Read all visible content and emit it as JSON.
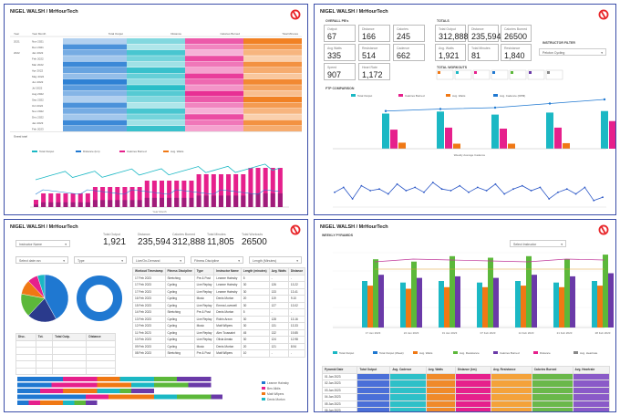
{
  "colors": {
    "accent": "#e8262a",
    "frame": "#3b4ea8",
    "blue": "#1f78d1",
    "teal": "#1bb8c4",
    "magenta": "#e6208c",
    "orange": "#f07814",
    "green": "#5cb83a",
    "purple": "#6a3aa8"
  },
  "logo_icon": "peloton-logo-icon",
  "dashboard_title": "NIGEL WALSH / MrHourTech",
  "p1": {
    "table_headers": [
      "Year",
      "Year Month",
      "Total Output",
      "Distance",
      "Calories Burned",
      "Total Minutes"
    ],
    "year_labels": [
      "2021",
      "2022"
    ],
    "month_labels": [
      "Nov 2021",
      "Dec 2021",
      "Jan 2022",
      "Feb 2022",
      "Mar 2022",
      "Apr 2022",
      "May 2022",
      "Jun 2022",
      "Jul 2022",
      "Aug 2022",
      "Sep 2022",
      "Oct 2022",
      "Nov 2022",
      "Dec 2022",
      "Jan 2023",
      "Feb 2023"
    ],
    "grand_total": "Grand total",
    "chart_legend": [
      "Total Output",
      "Distance (km)",
      "Calories Burned",
      "Avg. Watts"
    ],
    "chart_xlabel": "Year Month"
  },
  "p2": {
    "overall_pb": "OVERALL PB's",
    "totals": "TOTALS",
    "total_workouts": "TOTAL WORKOUTS",
    "ftp_comparison": "FTP COMPARISON",
    "instructor_filter": "INSTRUCTOR FILTER",
    "instructor_value": "Peloton Cycling",
    "pb_labels": [
      "Output",
      "Distance",
      "Calories",
      "Avg Watts",
      "Resistance",
      "Cadence",
      "Speed",
      "Heart Rate"
    ],
    "pb_values": [
      "67",
      "166",
      "245",
      "335",
      "514",
      "662",
      "907",
      "1,172"
    ],
    "total_labels": [
      "Total Output",
      "Distance",
      "Calories Burned",
      "Avg. Watts",
      "Total Minutes",
      "Resistance"
    ],
    "total_values": [
      "312,888",
      "235,594",
      "26500",
      "1,921",
      "81",
      "1,840"
    ],
    "ftp_legend": [
      "Total Output",
      "Calories Burned",
      "Avg. Watts",
      "Avg. Cadence (RPM)"
    ],
    "ftp_sub": "Weekly Average Cadence",
    "ftp_values": [
      {
        "blue": 70,
        "magenta": 38,
        "orange": 12
      },
      {
        "blue": 74,
        "magenta": 42,
        "orange": 10
      },
      {
        "blue": 68,
        "magenta": 40,
        "orange": 10
      },
      {
        "blue": 72,
        "magenta": 42,
        "orange": 11
      },
      {
        "blue": 75,
        "magenta": 55,
        "orange": 12
      }
    ],
    "ftp_line": [
      55,
      58,
      60,
      66,
      72
    ],
    "wave_values": [
      38,
      44,
      30,
      46,
      40,
      42,
      36,
      48,
      40,
      44,
      38,
      50,
      42,
      40,
      46,
      38,
      44,
      40,
      48,
      36,
      42,
      46,
      40,
      44,
      30,
      38,
      42,
      36,
      44,
      28,
      32
    ]
  },
  "p3": {
    "filter_label": "Instructor Name",
    "stat_labels": [
      "Total Output",
      "Distance",
      "Calories Burned",
      "Total Minutes",
      "Total Workouts"
    ],
    "stat_values": [
      "1,921",
      "235,594",
      "312,888",
      "11,805",
      "26500"
    ],
    "filters": [
      "Select date ran",
      "Type",
      "Live/On-Demand",
      "Fitness Discipline",
      "Length (Minutes)"
    ],
    "table_headers": [
      "Workout Timestamp",
      "Fitness Discipline",
      "Type",
      "Instructor Name",
      "Length (minutes)",
      "Avg. Watts",
      "Distance"
    ],
    "table_rows": [
      [
        "17 Feb 2023",
        "Stretching",
        "Pre & Post",
        "Leanne Hainsby",
        "5",
        "-",
        "-"
      ],
      [
        "17 Feb 2023",
        "Cycling",
        "Live Replay",
        "Leanne Hainsby",
        "30",
        "126",
        "13.22"
      ],
      [
        "17 Feb 2023",
        "Cycling",
        "Live Replay",
        "Leanne Hainsby",
        "30",
        "133",
        "13.41"
      ],
      [
        "16 Feb 2023",
        "Cycling",
        "Music",
        "Denis Morton",
        "20",
        "119",
        "9.10"
      ],
      [
        "15 Feb 2023",
        "Cycling",
        "Live Replay",
        "Emma Lovewell",
        "30",
        "127",
        "13.02"
      ],
      [
        "14 Feb 2023",
        "Stretching",
        "Pre & Post",
        "Denis Morton",
        "5",
        "-",
        "-"
      ],
      [
        "13 Feb 2023",
        "Cycling",
        "Live Replay",
        "Robin Arzon",
        "30",
        "128",
        "13.16"
      ],
      [
        "12 Feb 2023",
        "Cycling",
        "Music",
        "Matt Wilpers",
        "30",
        "131",
        "13.33"
      ],
      [
        "11 Feb 2023",
        "Cycling",
        "Live Replay",
        "Alex Toussaint",
        "45",
        "132",
        "19.85"
      ],
      [
        "10 Feb 2023",
        "Cycling",
        "Live Replay",
        "Olivia Amato",
        "30",
        "124",
        "12.98"
      ],
      [
        "09 Feb 2023",
        "Cycling",
        "Music",
        "Denis Morton",
        "20",
        "121",
        "8.94"
      ],
      [
        "08 Feb 2023",
        "Stretching",
        "Pre & Post",
        "Matt Wilpers",
        "10",
        "-",
        "-"
      ]
    ],
    "mini_headers": [
      "Disc.",
      "Tot.",
      "Total Outp.",
      "Distance"
    ],
    "legend_names": [
      "Leanne Hainsby",
      "Ben Alldis",
      "Matt Wilpers",
      "Denis Morton"
    ],
    "pie_slices": [
      0.42,
      0.2,
      0.16,
      0.1,
      0.07,
      0.05
    ],
    "bar_rows": [
      [
        0.2,
        0.15,
        0.1,
        0.15,
        0.1,
        0.15
      ],
      [
        0.15,
        0.2,
        0.15,
        0.1,
        0.15,
        0.1
      ],
      [
        0.1,
        0.1,
        0.15,
        0.1,
        0.05,
        0.1
      ],
      [
        0.3,
        0.1,
        0.2,
        0.1,
        0.15,
        0.05
      ],
      [
        0.05,
        0.05,
        0.1,
        0.05,
        0.05,
        0.05
      ]
    ]
  },
  "p4": {
    "sub": "WEEKLY PYRAMIDS",
    "filter_value": "Select Instructor",
    "legend": [
      "Total Output",
      "Total Output (Week)",
      "Avg. Watts",
      "Avg. Resistance",
      "Calories Burned",
      "Distance",
      "Avg. Heartrate"
    ],
    "groups": [
      {
        "teal": 60,
        "orange": 54,
        "green": 88,
        "purple": 68
      },
      {
        "teal": 58,
        "orange": 50,
        "green": 85,
        "purple": 64
      },
      {
        "teal": 60,
        "orange": 52,
        "green": 92,
        "purple": 66
      },
      {
        "teal": 58,
        "orange": 52,
        "green": 90,
        "purple": 64
      },
      {
        "teal": 60,
        "orange": 54,
        "green": 92,
        "purple": 68
      },
      {
        "teal": 58,
        "orange": 52,
        "green": 88,
        "purple": 66
      },
      {
        "teal": 60,
        "orange": 54,
        "green": 94,
        "purple": 70
      }
    ],
    "x_labels": [
      "17 Jan 2023",
      "24 Jan 2023",
      "31 Jan 2023",
      "07 Feb 2023",
      "14 Feb 2023",
      "21 Feb 2023",
      "28 Feb 2023"
    ],
    "table_headers": [
      "Pyramid Date",
      "Total Output",
      "Avg. Cadence",
      "Avg. Watts",
      "Distance (km)",
      "Avg. Resistance",
      "Calories Burned",
      "Avg. Heartrate"
    ],
    "table_rows": [
      [
        "01 Jan 2023",
        "",
        "",
        "",
        "",
        "",
        "",
        ""
      ],
      [
        "02 Jan 2023",
        "",
        "",
        "",
        "",
        "",
        "",
        ""
      ],
      [
        "03 Jan 2023",
        "",
        "",
        "",
        "",
        "",
        "",
        ""
      ],
      [
        "04 Jan 2023",
        "",
        "",
        "",
        "",
        "",
        "",
        ""
      ],
      [
        "05 Jan 2023",
        "",
        "",
        "",
        "",
        "",
        "",
        ""
      ],
      [
        "06 Jan 2023",
        "",
        "",
        "",
        "",
        "",
        "",
        ""
      ]
    ]
  }
}
